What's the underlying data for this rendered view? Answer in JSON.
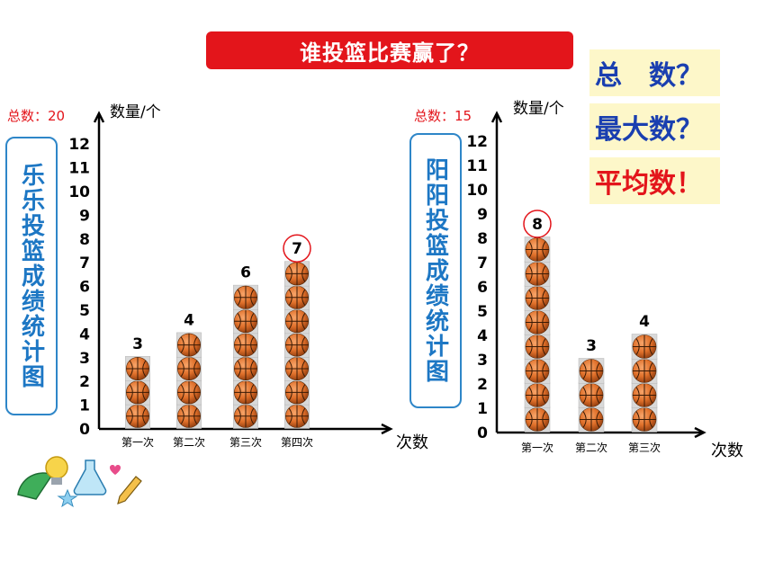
{
  "banner": "谁投篮比赛赢了？",
  "questions": [
    "总　数？",
    "最大数？",
    "平均数！"
  ],
  "colors": {
    "banner": "#e3151b",
    "question_blue": "#1a3fb0",
    "question_red": "#e3151b",
    "title_blue": "#1d77c4",
    "ball": "#e0702a"
  },
  "decoration": "doodle-icons",
  "chart_data": [
    {
      "type": "bar",
      "title": "乐乐投篮成绩统计图",
      "total_label": "总数：20",
      "ylabel": "数量/个",
      "xlabel": "次数",
      "ylim": [
        0,
        12
      ],
      "yticks": [
        "0",
        "1",
        "2",
        "3",
        "4",
        "5",
        "6",
        "7",
        "8",
        "9",
        "10",
        "11",
        "12"
      ],
      "categories": [
        "第一次",
        "第二次",
        "第三次",
        "第四次"
      ],
      "values": [
        3,
        4,
        6,
        7
      ],
      "value_labels": [
        "3",
        "4",
        "6",
        "7"
      ],
      "highlight_index": 3,
      "grid": false
    },
    {
      "type": "bar",
      "title": "阳阳投篮成绩统计图",
      "total_label": "总数：15",
      "ylabel": "数量/个",
      "xlabel": "次数",
      "ylim": [
        0,
        12
      ],
      "yticks": [
        "0",
        "1",
        "2",
        "3",
        "4",
        "5",
        "6",
        "7",
        "8",
        "9",
        "10",
        "11",
        "12"
      ],
      "categories": [
        "第一次",
        "第二次",
        "第三次"
      ],
      "values": [
        8,
        3,
        4
      ],
      "value_labels": [
        "8",
        "3",
        "4"
      ],
      "highlight_index": 0,
      "grid": false
    }
  ]
}
